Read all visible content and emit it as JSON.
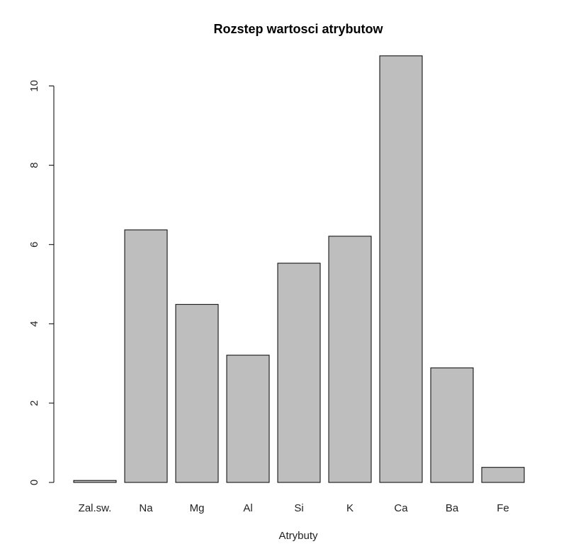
{
  "chart_data": {
    "type": "bar",
    "title": "Rozstep wartosci atrybutow",
    "xlabel": "Atrybuty",
    "ylabel": "",
    "categories": [
      "Zal.sw.",
      "Na",
      "Mg",
      "Al",
      "Si",
      "K",
      "Ca",
      "Ba",
      "Fe"
    ],
    "values": [
      0.05,
      6.37,
      4.49,
      3.21,
      5.53,
      6.21,
      10.76,
      2.89,
      0.38
    ],
    "ylim": [
      0,
      10.8
    ],
    "yticks": [
      0,
      2,
      4,
      6,
      8,
      10
    ],
    "bar_color": "#bebebe",
    "grid": false,
    "legend": "none"
  }
}
